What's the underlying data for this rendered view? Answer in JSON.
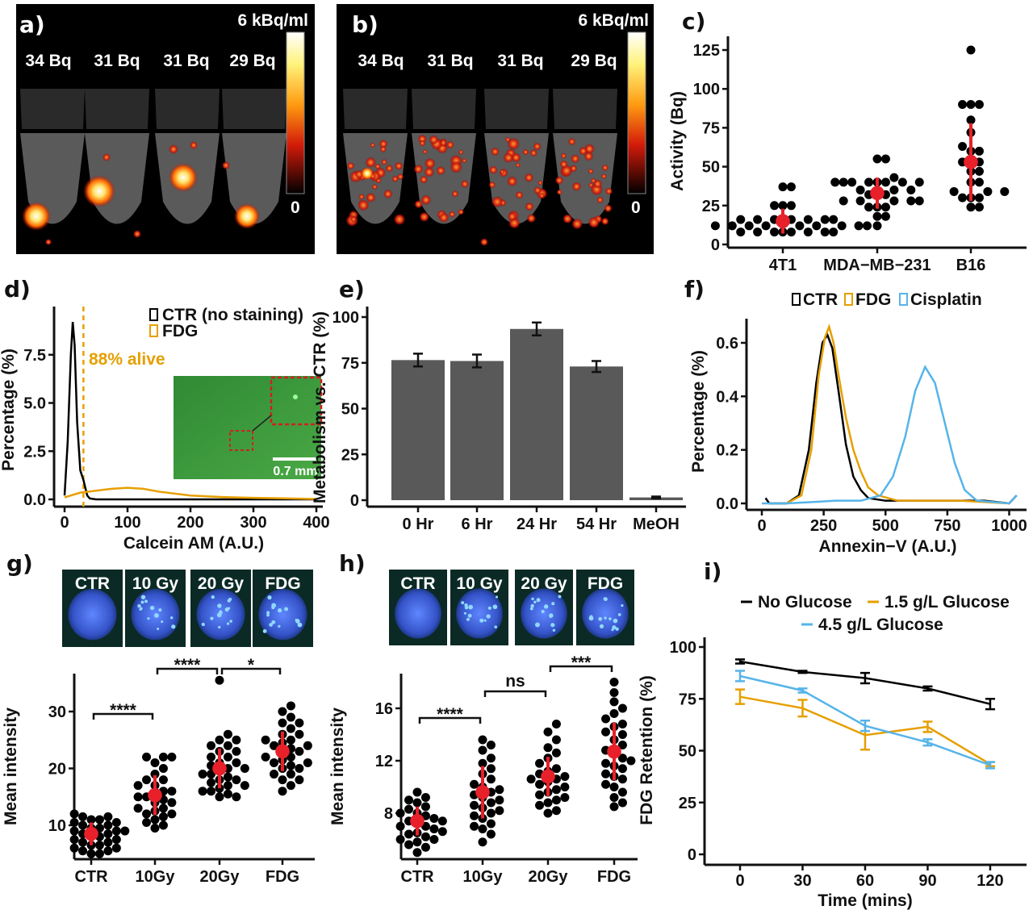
{
  "panels": {
    "a": {
      "label": "a)",
      "scale_max": "6 kBq/ml",
      "scale_min": "0",
      "tubes": [
        "34 Bq",
        "31 Bq",
        "31 Bq",
        "29 Bq"
      ]
    },
    "b": {
      "label": "b)",
      "scale_max": "6 kBq/ml",
      "scale_min": "0",
      "tubes": [
        "34 Bq",
        "31 Bq",
        "31 Bq",
        "29 Bq"
      ]
    },
    "g_images": [
      "CTR",
      "10 Gy",
      "20 Gy",
      "FDG"
    ],
    "h_images": [
      "CTR",
      "10 Gy",
      "20 Gy",
      "FDG"
    ]
  },
  "colors": {
    "dots": "#000000",
    "mean": "#E8202A",
    "ctr": "#000000",
    "fdg": "#E69F00",
    "cisplatin": "#56B4E9",
    "bar": "#595959"
  },
  "chart_data": [
    {
      "panel_label": "c)",
      "type": "scatter",
      "ylabel": "Activity (Bq)",
      "xlabel": "",
      "ylim": [
        0,
        130
      ],
      "yticks": [
        0,
        25,
        50,
        75,
        100,
        125
      ],
      "categories": [
        "4T1",
        "MDA−MB−231",
        "B16"
      ],
      "groups": [
        {
          "values": [
            37,
            37,
            25,
            25,
            25,
            16,
            16,
            16,
            16,
            16,
            16,
            16,
            16,
            12,
            12,
            12,
            12,
            12,
            12,
            12,
            12,
            12,
            8,
            8,
            8,
            8,
            8,
            8,
            8,
            8
          ],
          "mean": 15,
          "sd": 8
        },
        {
          "values": [
            55,
            55,
            43,
            40,
            40,
            40,
            40,
            40,
            40,
            40,
            40,
            35,
            35,
            35,
            32,
            32,
            32,
            28,
            28,
            28,
            28,
            28,
            24,
            24,
            24,
            18,
            18,
            12
          ],
          "mean": 33,
          "sd": 10
        },
        {
          "values": [
            125,
            90,
            90,
            90,
            80,
            72,
            63,
            60,
            60,
            53,
            53,
            53,
            47,
            47,
            40,
            40,
            34,
            34,
            34,
            30,
            30,
            30,
            24,
            24
          ],
          "mean": 53,
          "sd": 25
        }
      ]
    },
    {
      "panel_label": "d)",
      "type": "line",
      "xlabel": "Calcein AM (A.U.)",
      "ylabel": "Percentage (%)",
      "xlim": [
        0,
        400
      ],
      "ylim": [
        0,
        10
      ],
      "xticks": [
        0,
        100,
        200,
        300,
        400
      ],
      "yticks": [
        0,
        2.5,
        5,
        7.5
      ],
      "ytick_labels": [
        "0.0",
        "2.5",
        "5.0",
        "7.5"
      ],
      "annotation": "88% alive",
      "threshold_x": 30,
      "inset_scale": "0.7 mm",
      "series": [
        {
          "name": "CTR (no staining)",
          "color": "#000000",
          "x": [
            0,
            5,
            10,
            13,
            16,
            20,
            25,
            30,
            33,
            36,
            40,
            50,
            100,
            200,
            300,
            400
          ],
          "y": [
            0.2,
            3,
            7.5,
            9.2,
            8,
            4,
            1.5,
            1,
            0.6,
            0.2,
            0.05,
            0,
            0,
            0,
            0,
            0
          ]
        },
        {
          "name": "FDG",
          "color": "#E69F00",
          "x": [
            0,
            25,
            50,
            75,
            100,
            125,
            150,
            200,
            250,
            300,
            350,
            400
          ],
          "y": [
            0.1,
            0.35,
            0.45,
            0.55,
            0.6,
            0.55,
            0.4,
            0.2,
            0.12,
            0.08,
            0.05,
            0.02
          ]
        }
      ]
    },
    {
      "panel_label": "e)",
      "type": "bar",
      "xlabel": "",
      "ylabel": "Metabolism vs. CTR (%)",
      "ylim": [
        0,
        100
      ],
      "yticks": [
        0,
        25,
        50,
        75,
        100
      ],
      "categories": [
        "0 Hr",
        "6 Hr",
        "24 Hr",
        "54 Hr",
        "MeOH"
      ],
      "values": [
        76.5,
        76,
        93.5,
        73,
        1.5
      ],
      "errors": [
        3.5,
        3.5,
        3.5,
        3,
        0.5
      ]
    },
    {
      "panel_label": "f)",
      "type": "line",
      "xlabel": "Annexin−V (A.U.)",
      "ylabel": "Percentage (%)",
      "xlim": [
        0,
        1050
      ],
      "ylim": [
        0,
        0.7
      ],
      "xticks": [
        0,
        250,
        500,
        750,
        1000
      ],
      "yticks": [
        0,
        0.2,
        0.4,
        0.6
      ],
      "ytick_labels": [
        "0.0",
        "0.2",
        "0.4",
        "0.6"
      ],
      "legend_position": "top",
      "series": [
        {
          "name": "CTR",
          "color": "#000000",
          "points": [
            [
              15,
              0.02
            ],
            [
              30,
              0
            ],
            [
              100,
              0
            ],
            [
              150,
              0.03
            ],
            [
              190,
              0.2
            ],
            [
              220,
              0.45
            ],
            [
              245,
              0.6
            ],
            [
              265,
              0.63
            ],
            [
              285,
              0.58
            ],
            [
              310,
              0.42
            ],
            [
              340,
              0.22
            ],
            [
              370,
              0.1
            ],
            [
              400,
              0.05
            ],
            [
              430,
              0.02
            ],
            [
              500,
              0.01
            ],
            [
              700,
              0.01
            ],
            [
              900,
              0.01
            ],
            [
              1000,
              0
            ],
            [
              1030,
              0.03
            ]
          ]
        },
        {
          "name": "FDG",
          "color": "#E69F00",
          "points": [
            [
              100,
              0
            ],
            [
              160,
              0.03
            ],
            [
              200,
              0.2
            ],
            [
              230,
              0.48
            ],
            [
              255,
              0.62
            ],
            [
              272,
              0.66
            ],
            [
              290,
              0.6
            ],
            [
              310,
              0.48
            ],
            [
              340,
              0.32
            ],
            [
              370,
              0.2
            ],
            [
              400,
              0.12
            ],
            [
              430,
              0.06
            ],
            [
              470,
              0.03
            ],
            [
              550,
              0.01
            ],
            [
              800,
              0.01
            ],
            [
              1000,
              0
            ]
          ]
        },
        {
          "name": "Cisplatin",
          "color": "#56B4E9",
          "points": [
            [
              0,
              0
            ],
            [
              100,
              0
            ],
            [
              300,
              0.01
            ],
            [
              400,
              0.01
            ],
            [
              480,
              0.03
            ],
            [
              530,
              0.1
            ],
            [
              580,
              0.25
            ],
            [
              620,
              0.42
            ],
            [
              660,
              0.51
            ],
            [
              700,
              0.45
            ],
            [
              740,
              0.3
            ],
            [
              780,
              0.15
            ],
            [
              820,
              0.05
            ],
            [
              870,
              0.01
            ],
            [
              1000,
              0
            ],
            [
              1030,
              0.03
            ]
          ]
        }
      ]
    },
    {
      "panel_label": "g)",
      "type": "scatter",
      "xlabel": "",
      "ylabel": "Mean intensity",
      "ylim": [
        4,
        36
      ],
      "yticks": [
        10,
        20,
        30
      ],
      "categories": [
        "CTR",
        "10Gy",
        "20Gy",
        "FDG"
      ],
      "groups": [
        {
          "values": [
            12,
            11.5,
            11.5,
            11,
            11,
            10.5,
            10.5,
            10,
            10,
            9.5,
            9.5,
            9,
            9,
            9,
            8.5,
            8.5,
            8,
            8,
            7.5,
            7.5,
            7,
            7,
            6.5,
            6.5,
            6,
            6,
            5.5,
            5.5,
            5,
            5
          ],
          "mean": 8.5,
          "sd": 2
        },
        {
          "values": [
            22,
            22,
            22,
            21,
            20,
            19,
            18,
            18,
            17,
            17,
            16,
            16,
            15.5,
            15,
            15,
            14.5,
            14,
            14,
            13,
            13,
            12.5,
            12,
            12,
            11.5,
            11,
            10.5,
            10,
            9.5
          ],
          "mean": 15.3,
          "sd": 3.5
        },
        {
          "values": [
            35.5,
            26,
            25,
            25,
            24,
            24,
            23,
            23,
            22,
            22,
            21,
            21,
            20.5,
            20,
            20,
            19.5,
            19,
            19,
            18.5,
            18,
            18,
            17.5,
            17,
            17,
            16.5,
            16,
            16,
            15.5,
            15,
            15
          ],
          "mean": 20,
          "sd": 3.5
        },
        {
          "values": [
            31,
            30,
            29,
            28,
            28,
            27,
            26,
            26,
            25,
            25,
            24.5,
            24,
            24,
            23.5,
            23,
            23,
            22,
            22,
            21.5,
            21,
            21,
            20.5,
            20,
            20,
            19,
            19,
            18,
            18,
            17,
            16
          ],
          "mean": 23,
          "sd": 3.5
        }
      ],
      "significance": [
        {
          "from": 0,
          "to": 1,
          "label": "****"
        },
        {
          "from": 1,
          "to": 2,
          "label": "****"
        },
        {
          "from": 2,
          "to": 3,
          "label": "*"
        }
      ]
    },
    {
      "panel_label": "h)",
      "type": "scatter",
      "xlabel": "",
      "ylabel": "Mean intensity",
      "ylim": [
        4.5,
        18.5
      ],
      "yticks": [
        8,
        12,
        16
      ],
      "categories": [
        "CTR",
        "10Gy",
        "20Gy",
        "FDG"
      ],
      "groups": [
        {
          "values": [
            9.6,
            9.2,
            9,
            8.8,
            8.5,
            8.3,
            8,
            8,
            7.8,
            7.6,
            7.4,
            7.4,
            7.2,
            7,
            7,
            6.8,
            6.6,
            6.5,
            6.4,
            6.2,
            6,
            6,
            5.8,
            5.6,
            5.4,
            5
          ],
          "mean": 7.4,
          "sd": 1.1
        },
        {
          "values": [
            13.6,
            13.2,
            12.8,
            12.2,
            11.8,
            11.4,
            11,
            10.6,
            10.2,
            10,
            9.8,
            9.6,
            9.4,
            9.2,
            9,
            8.8,
            8.6,
            8.4,
            8.2,
            8,
            7.8,
            7.6,
            7.2,
            7,
            6.8,
            6.4,
            5.8
          ],
          "mean": 9.6,
          "sd": 2
        },
        {
          "values": [
            14.8,
            14.2,
            13.6,
            13,
            12.6,
            12.2,
            11.8,
            11.4,
            11.2,
            11,
            10.8,
            10.6,
            10.6,
            10.4,
            10.2,
            10,
            9.8,
            9.6,
            9.4,
            9.2,
            9,
            8.8,
            8.6,
            8.2,
            8
          ],
          "mean": 10.8,
          "sd": 1.5
        },
        {
          "values": [
            18,
            17.2,
            16.5,
            16,
            15.6,
            15.2,
            14.8,
            14.6,
            14.2,
            14,
            13.6,
            13.2,
            12.8,
            12.6,
            12.2,
            12,
            11.8,
            11.6,
            11.4,
            11,
            10.8,
            10.6,
            10.2,
            10,
            9.6,
            9.2,
            8.8,
            8.5
          ],
          "mean": 12.7,
          "sd": 2.2
        }
      ],
      "significance": [
        {
          "from": 0,
          "to": 1,
          "label": "****"
        },
        {
          "from": 1,
          "to": 2,
          "label": "ns"
        },
        {
          "from": 2,
          "to": 3,
          "label": "***"
        }
      ]
    },
    {
      "panel_label": "i)",
      "type": "line",
      "xlabel": "Time (mins)",
      "ylabel": "FDG Retention (%)",
      "xlim": [
        -15,
        135
      ],
      "ylim": [
        0,
        105
      ],
      "xticks": [
        0,
        30,
        60,
        90,
        120
      ],
      "yticks": [
        0,
        25,
        50,
        75,
        100
      ],
      "legend_position": "top",
      "x": [
        0,
        30,
        60,
        90,
        120
      ],
      "series": [
        {
          "name": "No Glucose",
          "color": "#000000",
          "values": [
            93,
            88,
            85,
            80,
            72.5
          ],
          "errors": [
            1,
            0.5,
            2.5,
            1,
            2.5
          ]
        },
        {
          "name": "1.5 g/L Glucose",
          "color": "#E69F00",
          "values": [
            76,
            70.5,
            57.5,
            61.5,
            43.5
          ],
          "errors": [
            3.5,
            4,
            7,
            2.5,
            1
          ]
        },
        {
          "name": "4.5 g/L Glucose",
          "color": "#56B4E9",
          "values": [
            86,
            79,
            62,
            54,
            43
          ],
          "errors": [
            2.5,
            1,
            2.5,
            1.5,
            1.5
          ]
        }
      ]
    }
  ]
}
